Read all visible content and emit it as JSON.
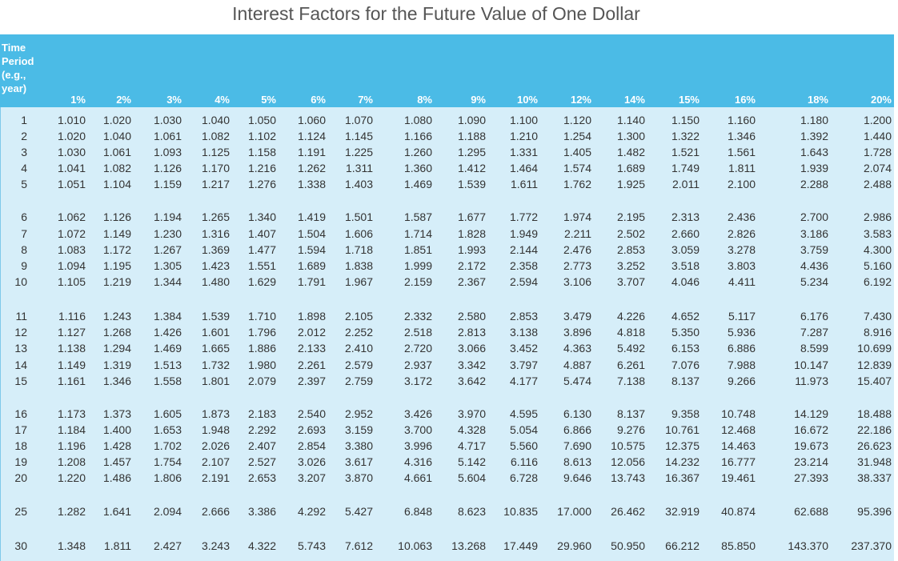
{
  "title": "Interest Factors for the Future Value of One Dollar",
  "header": {
    "period_label_lines": [
      "Time",
      "Period",
      "(e.g.,",
      "year)"
    ],
    "rates": [
      "1%",
      "2%",
      "3%",
      "4%",
      "5%",
      "6%",
      "7%",
      "8%",
      "9%",
      "10%",
      "12%",
      "14%",
      "15%",
      "16%",
      "18%",
      "20%"
    ]
  },
  "rows": [
    {
      "period": "1",
      "values": [
        "1.010",
        "1.020",
        "1.030",
        "1.040",
        "1.050",
        "1.060",
        "1.070",
        "1.080",
        "1.090",
        "1.100",
        "1.120",
        "1.140",
        "1.150",
        "1.160",
        "1.180",
        "1.200"
      ]
    },
    {
      "period": "2",
      "values": [
        "1.020",
        "1.040",
        "1.061",
        "1.082",
        "1.102",
        "1.124",
        "1.145",
        "1.166",
        "1.188",
        "1.210",
        "1.254",
        "1.300",
        "1.322",
        "1.346",
        "1.392",
        "1.440"
      ]
    },
    {
      "period": "3",
      "values": [
        "1.030",
        "1.061",
        "1.093",
        "1.125",
        "1.158",
        "1.191",
        "1.225",
        "1.260",
        "1.295",
        "1.331",
        "1.405",
        "1.482",
        "1.521",
        "1.561",
        "1.643",
        "1.728"
      ]
    },
    {
      "period": "4",
      "values": [
        "1.041",
        "1.082",
        "1.126",
        "1.170",
        "1.216",
        "1.262",
        "1.311",
        "1.360",
        "1.412",
        "1.464",
        "1.574",
        "1.689",
        "1.749",
        "1.811",
        "1.939",
        "2.074"
      ]
    },
    {
      "period": "5",
      "values": [
        "1.051",
        "1.104",
        "1.159",
        "1.217",
        "1.276",
        "1.338",
        "1.403",
        "1.469",
        "1.539",
        "1.611",
        "1.762",
        "1.925",
        "2.011",
        "2.100",
        "2.288",
        "2.488"
      ]
    },
    {
      "period": "6",
      "values": [
        "1.062",
        "1.126",
        "1.194",
        "1.265",
        "1.340",
        "1.419",
        "1.501",
        "1.587",
        "1.677",
        "1.772",
        "1.974",
        "2.195",
        "2.313",
        "2.436",
        "2.700",
        "2.986"
      ]
    },
    {
      "period": "7",
      "values": [
        "1.072",
        "1.149",
        "1.230",
        "1.316",
        "1.407",
        "1.504",
        "1.606",
        "1.714",
        "1.828",
        "1.949",
        "2.211",
        "2.502",
        "2.660",
        "2.826",
        "3.186",
        "3.583"
      ]
    },
    {
      "period": "8",
      "values": [
        "1.083",
        "1.172",
        "1.267",
        "1.369",
        "1.477",
        "1.594",
        "1.718",
        "1.851",
        "1.993",
        "2.144",
        "2.476",
        "2.853",
        "3.059",
        "3.278",
        "3.759",
        "4.300"
      ]
    },
    {
      "period": "9",
      "values": [
        "1.094",
        "1.195",
        "1.305",
        "1.423",
        "1.551",
        "1.689",
        "1.838",
        "1.999",
        "2.172",
        "2.358",
        "2.773",
        "3.252",
        "3.518",
        "3.803",
        "4.436",
        "5.160"
      ]
    },
    {
      "period": "10",
      "values": [
        "1.105",
        "1.219",
        "1.344",
        "1.480",
        "1.629",
        "1.791",
        "1.967",
        "2.159",
        "2.367",
        "2.594",
        "3.106",
        "3.707",
        "4.046",
        "4.411",
        "5.234",
        "6.192"
      ]
    },
    {
      "period": "11",
      "values": [
        "1.116",
        "1.243",
        "1.384",
        "1.539",
        "1.710",
        "1.898",
        "2.105",
        "2.332",
        "2.580",
        "2.853",
        "3.479",
        "4.226",
        "4.652",
        "5.117",
        "6.176",
        "7.430"
      ]
    },
    {
      "period": "12",
      "values": [
        "1.127",
        "1.268",
        "1.426",
        "1.601",
        "1.796",
        "2.012",
        "2.252",
        "2.518",
        "2.813",
        "3.138",
        "3.896",
        "4.818",
        "5.350",
        "5.936",
        "7.287",
        "8.916"
      ]
    },
    {
      "period": "13",
      "values": [
        "1.138",
        "1.294",
        "1.469",
        "1.665",
        "1.886",
        "2.133",
        "2.410",
        "2.720",
        "3.066",
        "3.452",
        "4.363",
        "5.492",
        "6.153",
        "6.886",
        "8.599",
        "10.699"
      ]
    },
    {
      "period": "14",
      "values": [
        "1.149",
        "1.319",
        "1.513",
        "1.732",
        "1.980",
        "2.261",
        "2.579",
        "2.937",
        "3.342",
        "3.797",
        "4.887",
        "6.261",
        "7.076",
        "7.988",
        "10.147",
        "12.839"
      ]
    },
    {
      "period": "15",
      "values": [
        "1.161",
        "1.346",
        "1.558",
        "1.801",
        "2.079",
        "2.397",
        "2.759",
        "3.172",
        "3.642",
        "4.177",
        "5.474",
        "7.138",
        "8.137",
        "9.266",
        "11.973",
        "15.407"
      ]
    },
    {
      "period": "16",
      "values": [
        "1.173",
        "1.373",
        "1.605",
        "1.873",
        "2.183",
        "2.540",
        "2.952",
        "3.426",
        "3.970",
        "4.595",
        "6.130",
        "8.137",
        "9.358",
        "10.748",
        "14.129",
        "18.488"
      ]
    },
    {
      "period": "17",
      "values": [
        "1.184",
        "1.400",
        "1.653",
        "1.948",
        "2.292",
        "2.693",
        "3.159",
        "3.700",
        "4.328",
        "5.054",
        "6.866",
        "9.276",
        "10.761",
        "12.468",
        "16.672",
        "22.186"
      ]
    },
    {
      "period": "18",
      "values": [
        "1.196",
        "1.428",
        "1.702",
        "2.026",
        "2.407",
        "2.854",
        "3.380",
        "3.996",
        "4.717",
        "5.560",
        "7.690",
        "10.575",
        "12.375",
        "14.463",
        "19.673",
        "26.623"
      ]
    },
    {
      "period": "19",
      "values": [
        "1.208",
        "1.457",
        "1.754",
        "2.107",
        "2.527",
        "3.026",
        "3.617",
        "4.316",
        "5.142",
        "6.116",
        "8.613",
        "12.056",
        "14.232",
        "16.777",
        "23.214",
        "31.948"
      ]
    },
    {
      "period": "20",
      "values": [
        "1.220",
        "1.486",
        "1.806",
        "2.191",
        "2.653",
        "3.207",
        "3.870",
        "4.661",
        "5.604",
        "6.728",
        "9.646",
        "13.743",
        "16.367",
        "19.461",
        "27.393",
        "38.337"
      ]
    },
    {
      "period": "25",
      "values": [
        "1.282",
        "1.641",
        "2.094",
        "2.666",
        "3.386",
        "4.292",
        "5.427",
        "6.848",
        "8.623",
        "10.835",
        "17.000",
        "26.462",
        "32.919",
        "40.874",
        "62.688",
        "95.396"
      ]
    },
    {
      "period": "30",
      "values": [
        "1.348",
        "1.811",
        "2.427",
        "3.243",
        "4.322",
        "5.743",
        "7.612",
        "10.063",
        "13.268",
        "17.449",
        "29.960",
        "50.950",
        "66.212",
        "85.850",
        "143.370",
        "237.370"
      ]
    }
  ]
}
